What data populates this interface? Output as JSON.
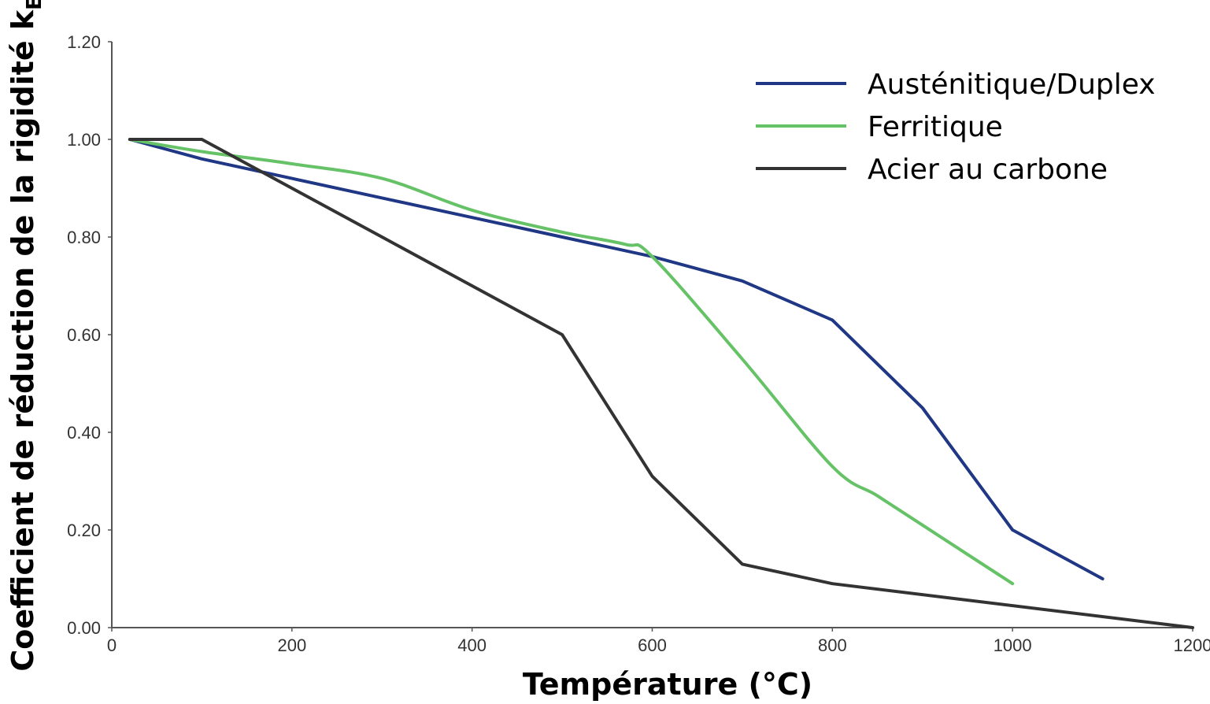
{
  "chart_data": {
    "type": "line",
    "xlabel": "Température (°C)",
    "ylabel_main": "Coefficient de réduction de la rigidité k",
    "ylabel_subscript": "E,θ",
    "xlim": [
      0,
      1200
    ],
    "ylim": [
      0,
      1.2
    ],
    "x_ticks": [
      0,
      200,
      400,
      600,
      800,
      1000,
      1200
    ],
    "x_tick_labels": [
      "0",
      "200",
      "400",
      "600",
      "800",
      "1000",
      "1200"
    ],
    "y_ticks": [
      0,
      0.2,
      0.4,
      0.6,
      0.8,
      1.0,
      1.2
    ],
    "y_tick_labels": [
      "0.00",
      "0.20",
      "0.40",
      "0.60",
      "0.80",
      "1.00",
      "1.20"
    ],
    "grid": false,
    "legend_position": "top-right",
    "series": [
      {
        "name": "Austénitique/Duplex",
        "color": "#1f3784",
        "smooth": false,
        "points": [
          [
            20,
            1.0
          ],
          [
            100,
            0.96
          ],
          [
            200,
            0.92
          ],
          [
            300,
            0.88
          ],
          [
            400,
            0.84
          ],
          [
            500,
            0.8
          ],
          [
            600,
            0.76
          ],
          [
            700,
            0.71
          ],
          [
            800,
            0.63
          ],
          [
            900,
            0.45
          ],
          [
            1000,
            0.2
          ],
          [
            1100,
            0.1
          ]
        ]
      },
      {
        "name": "Ferritique",
        "color": "#66c266",
        "smooth": true,
        "points": [
          [
            20,
            1.0
          ],
          [
            100,
            0.975
          ],
          [
            200,
            0.95
          ],
          [
            300,
            0.92
          ],
          [
            400,
            0.855
          ],
          [
            500,
            0.81
          ],
          [
            570,
            0.785
          ],
          [
            600,
            0.76
          ],
          [
            700,
            0.55
          ],
          [
            800,
            0.33
          ],
          [
            850,
            0.27
          ],
          [
            900,
            0.21
          ],
          [
            1000,
            0.09
          ]
        ]
      },
      {
        "name": "Acier au carbone",
        "color": "#333333",
        "smooth": false,
        "points": [
          [
            20,
            1.0
          ],
          [
            100,
            1.0
          ],
          [
            200,
            0.9
          ],
          [
            300,
            0.8
          ],
          [
            400,
            0.7
          ],
          [
            500,
            0.6
          ],
          [
            600,
            0.31
          ],
          [
            700,
            0.13
          ],
          [
            800,
            0.09
          ],
          [
            1200,
            0.0
          ]
        ]
      }
    ]
  }
}
